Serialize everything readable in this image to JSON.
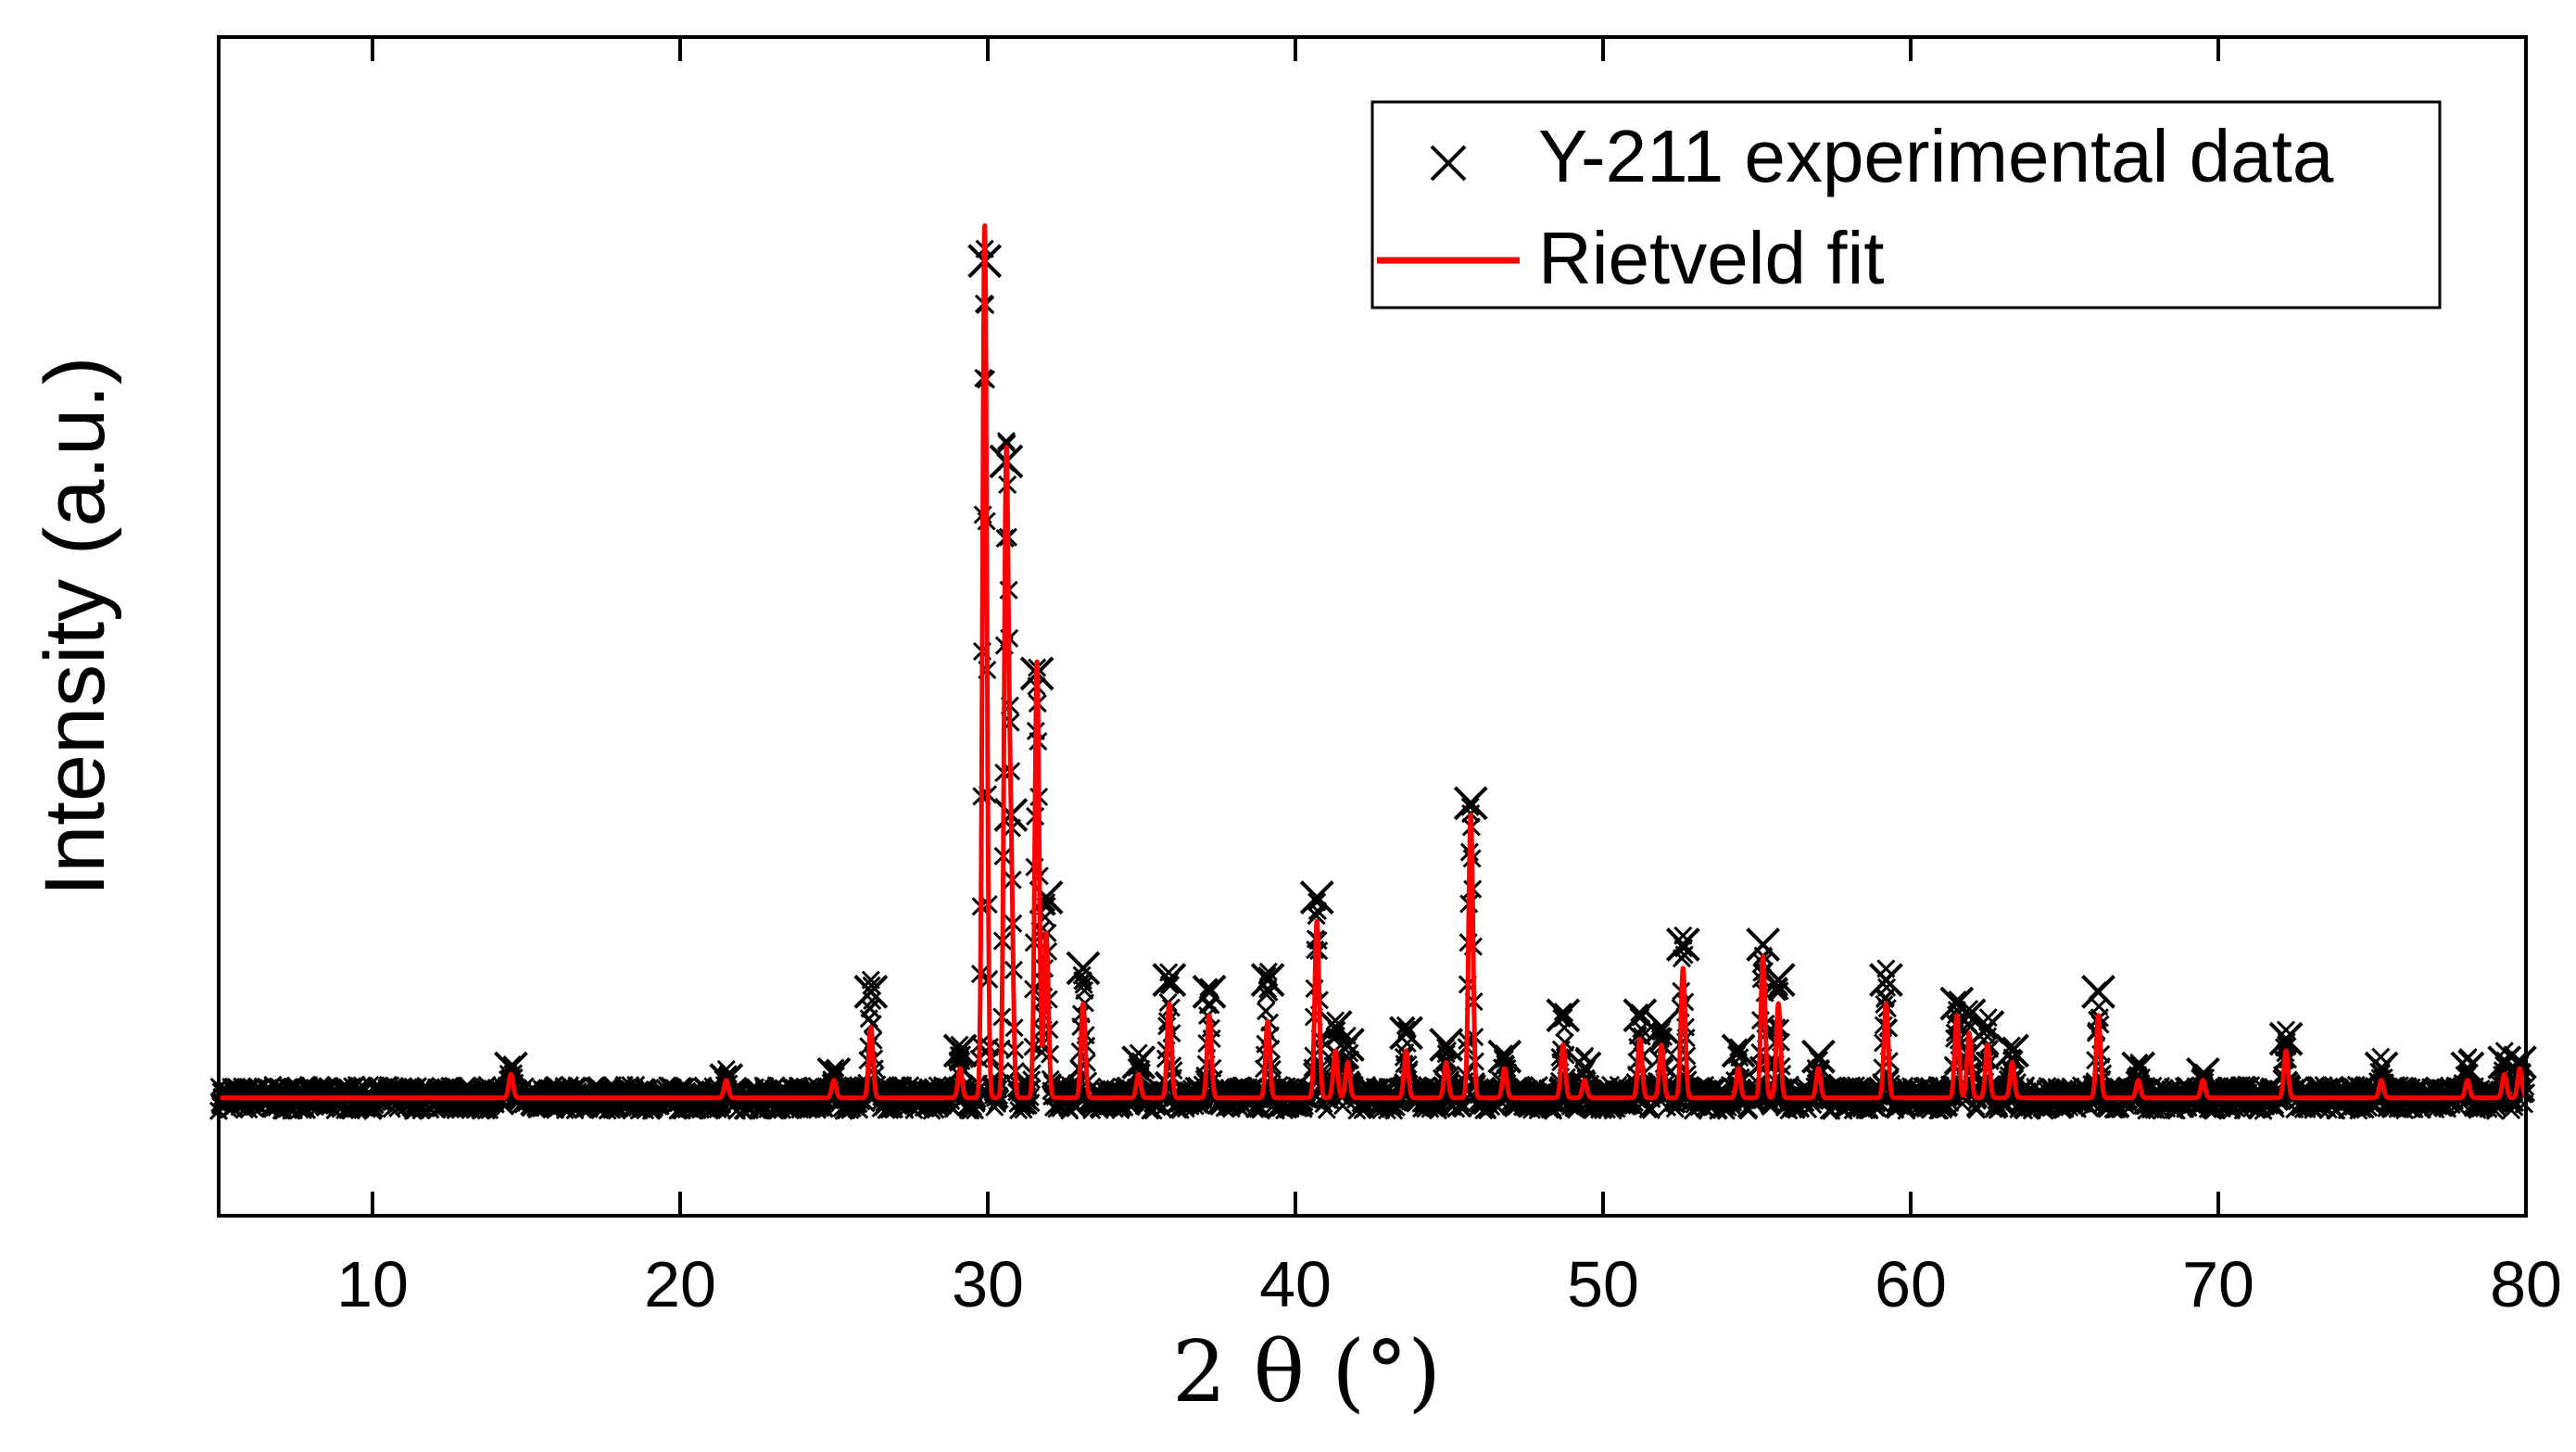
{
  "chart_data": {
    "type": "line",
    "title": "",
    "xlabel": "2 θ (°)",
    "ylabel": "Intensity (a.u.)",
    "xlim": [
      5,
      80
    ],
    "ylim": [
      0,
      100
    ],
    "xticks": [
      10,
      20,
      30,
      40,
      50,
      60,
      70,
      80
    ],
    "yticks": [],
    "grid": false,
    "legend_position": "top-right",
    "background": 10,
    "series": [
      {
        "name": "Y-211 experimental data",
        "marker": "x",
        "color": "#000000",
        "peaks": [
          {
            "x": 14.5,
            "y": 12.5
          },
          {
            "x": 21.5,
            "y": 11.5
          },
          {
            "x": 25.0,
            "y": 12.0
          },
          {
            "x": 26.2,
            "y": 19.0
          },
          {
            "x": 29.1,
            "y": 14.0
          },
          {
            "x": 29.9,
            "y": 81.0
          },
          {
            "x": 30.6,
            "y": 64.0
          },
          {
            "x": 30.75,
            "y": 34.0
          },
          {
            "x": 31.6,
            "y": 46.0
          },
          {
            "x": 31.9,
            "y": 27.0
          },
          {
            "x": 33.1,
            "y": 21.0
          },
          {
            "x": 34.9,
            "y": 13.0
          },
          {
            "x": 35.9,
            "y": 20.0
          },
          {
            "x": 37.2,
            "y": 19.0
          },
          {
            "x": 39.1,
            "y": 20.0
          },
          {
            "x": 40.7,
            "y": 27.0
          },
          {
            "x": 41.3,
            "y": 16.0
          },
          {
            "x": 41.7,
            "y": 14.5
          },
          {
            "x": 43.6,
            "y": 15.5
          },
          {
            "x": 44.9,
            "y": 14.5
          },
          {
            "x": 45.7,
            "y": 35.0
          },
          {
            "x": 46.8,
            "y": 13.5
          },
          {
            "x": 48.7,
            "y": 17.0
          },
          {
            "x": 49.4,
            "y": 12.5
          },
          {
            "x": 51.2,
            "y": 17.0
          },
          {
            "x": 51.9,
            "y": 16.0
          },
          {
            "x": 52.6,
            "y": 23.0
          },
          {
            "x": 54.4,
            "y": 14.0
          },
          {
            "x": 55.2,
            "y": 23.0
          },
          {
            "x": 55.7,
            "y": 20.0
          },
          {
            "x": 57.0,
            "y": 13.5
          },
          {
            "x": 59.2,
            "y": 20.0
          },
          {
            "x": 61.5,
            "y": 18.0
          },
          {
            "x": 61.9,
            "y": 17.0
          },
          {
            "x": 62.5,
            "y": 16.0
          },
          {
            "x": 63.3,
            "y": 14.0
          },
          {
            "x": 66.1,
            "y": 19.0
          },
          {
            "x": 67.4,
            "y": 12.5
          },
          {
            "x": 69.5,
            "y": 12.0
          },
          {
            "x": 72.2,
            "y": 15.0
          },
          {
            "x": 75.3,
            "y": 12.5
          },
          {
            "x": 78.1,
            "y": 12.5
          },
          {
            "x": 79.3,
            "y": 13.0
          },
          {
            "x": 79.8,
            "y": 13.0
          }
        ]
      },
      {
        "name": "Rietveld fit",
        "marker": "line",
        "color": "#ff0000",
        "peaks": [
          {
            "x": 14.5,
            "y": 12.0
          },
          {
            "x": 21.5,
            "y": 11.5
          },
          {
            "x": 25.0,
            "y": 11.5
          },
          {
            "x": 26.2,
            "y": 16.0
          },
          {
            "x": 29.1,
            "y": 12.5
          },
          {
            "x": 29.9,
            "y": 84.0
          },
          {
            "x": 30.6,
            "y": 63.0
          },
          {
            "x": 30.75,
            "y": 30.0
          },
          {
            "x": 31.6,
            "y": 47.0
          },
          {
            "x": 31.9,
            "y": 24.0
          },
          {
            "x": 33.1,
            "y": 18.0
          },
          {
            "x": 34.9,
            "y": 12.0
          },
          {
            "x": 35.9,
            "y": 18.0
          },
          {
            "x": 37.2,
            "y": 17.0
          },
          {
            "x": 39.1,
            "y": 16.5
          },
          {
            "x": 40.7,
            "y": 25.0
          },
          {
            "x": 41.3,
            "y": 14.0
          },
          {
            "x": 41.7,
            "y": 13.0
          },
          {
            "x": 43.6,
            "y": 14.0
          },
          {
            "x": 44.9,
            "y": 13.0
          },
          {
            "x": 45.7,
            "y": 34.0
          },
          {
            "x": 46.8,
            "y": 12.5
          },
          {
            "x": 48.7,
            "y": 14.5
          },
          {
            "x": 49.4,
            "y": 11.5
          },
          {
            "x": 51.2,
            "y": 15.0
          },
          {
            "x": 51.9,
            "y": 14.5
          },
          {
            "x": 52.6,
            "y": 21.0
          },
          {
            "x": 54.4,
            "y": 12.5
          },
          {
            "x": 55.2,
            "y": 22.0
          },
          {
            "x": 55.7,
            "y": 18.0
          },
          {
            "x": 57.0,
            "y": 12.5
          },
          {
            "x": 59.2,
            "y": 18.0
          },
          {
            "x": 61.5,
            "y": 17.0
          },
          {
            "x": 61.9,
            "y": 15.5
          },
          {
            "x": 62.5,
            "y": 14.5
          },
          {
            "x": 63.3,
            "y": 13.0
          },
          {
            "x": 66.1,
            "y": 17.0
          },
          {
            "x": 67.4,
            "y": 11.5
          },
          {
            "x": 69.5,
            "y": 11.5
          },
          {
            "x": 72.2,
            "y": 14.0
          },
          {
            "x": 75.3,
            "y": 11.5
          },
          {
            "x": 78.1,
            "y": 11.5
          },
          {
            "x": 79.3,
            "y": 12.0
          },
          {
            "x": 79.8,
            "y": 12.5
          }
        ]
      }
    ]
  },
  "legend": {
    "exp_label": "Y-211 experimental data",
    "fit_label": "Rietveld fit"
  }
}
